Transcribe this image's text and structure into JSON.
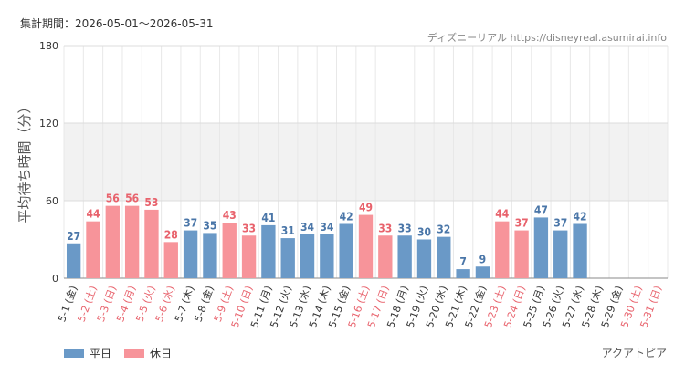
{
  "header": {
    "period_label": "集計期間：2026-05-01～2026-05-31",
    "source": "ディズニーリアル https://disneyreal.asumirai.info"
  },
  "footer": {
    "attraction": "アクアトピア"
  },
  "legend": {
    "weekday": "平日",
    "holiday": "休日"
  },
  "colors": {
    "weekday": "#6a99c7",
    "holiday": "#f7949a",
    "weekday_text": "#4a76a8",
    "holiday_text": "#e8626c",
    "band": "#f2f2f2"
  },
  "chart_data": {
    "type": "bar",
    "ylabel": "平均待ち時間（分）",
    "ylim": [
      0,
      180
    ],
    "yticks": [
      0,
      60,
      120,
      180
    ],
    "shaded_band": [
      60,
      120
    ],
    "categories": [
      "5-1 (金)",
      "5-2 (土)",
      "5-3 (日)",
      "5-4 (月)",
      "5-5 (火)",
      "5-6 (水)",
      "5-7 (木)",
      "5-8 (金)",
      "5-9 (土)",
      "5-10 (日)",
      "5-11 (月)",
      "5-12 (火)",
      "5-13 (水)",
      "5-14 (木)",
      "5-15 (金)",
      "5-16 (土)",
      "5-17 (日)",
      "5-18 (月)",
      "5-19 (火)",
      "5-20 (水)",
      "5-21 (木)",
      "5-22 (金)",
      "5-23 (土)",
      "5-24 (日)",
      "5-25 (月)",
      "5-26 (火)",
      "5-27 (水)",
      "5-28 (木)",
      "5-29 (金)",
      "5-30 (土)",
      "5-31 (日)"
    ],
    "values": [
      27,
      44,
      56,
      56,
      53,
      28,
      37,
      35,
      43,
      33,
      41,
      31,
      34,
      34,
      42,
      49,
      33,
      33,
      30,
      32,
      7,
      9,
      44,
      37,
      47,
      37,
      42,
      null,
      null,
      null,
      null
    ],
    "day_type": [
      "weekday",
      "holiday",
      "holiday",
      "holiday",
      "holiday",
      "holiday",
      "weekday",
      "weekday",
      "holiday",
      "holiday",
      "weekday",
      "weekday",
      "weekday",
      "weekday",
      "weekday",
      "holiday",
      "holiday",
      "weekday",
      "weekday",
      "weekday",
      "weekday",
      "weekday",
      "holiday",
      "holiday",
      "weekday",
      "weekday",
      "weekday",
      "weekday",
      "weekday",
      "holiday",
      "holiday"
    ]
  }
}
